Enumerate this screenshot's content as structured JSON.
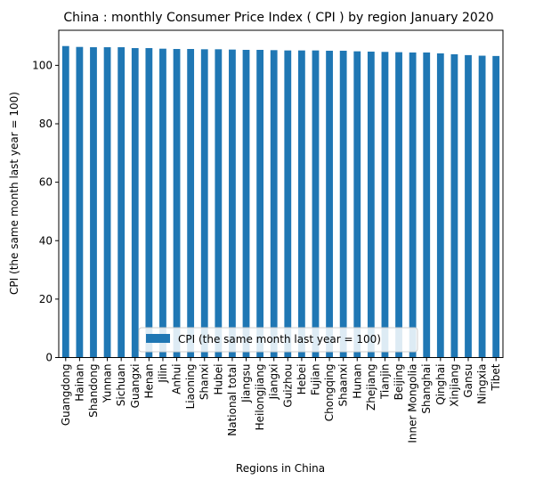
{
  "chart_data": {
    "type": "bar",
    "title": "China : monthly Consumer Price Index ( CPI ) by region January 2020",
    "xlabel": "Regions in China",
    "ylabel": "CPI (the same month last year = 100)",
    "ylim": [
      0,
      112
    ],
    "yticks": [
      0,
      20,
      40,
      60,
      80,
      100
    ],
    "grid": false,
    "legend_position": "lower center",
    "color": "#1f77b4",
    "categories": [
      "Guangdong",
      "Hainan",
      "Shandong",
      "Yunnan",
      "Sichuan",
      "Guangxi",
      "Henan",
      "Jilin",
      "Anhui",
      "Liaoning",
      "Shanxi",
      "Hubei",
      "National total",
      "Jiangsu",
      "Heilongjiang",
      "Jiangxi",
      "Guizhou",
      "Hebei",
      "Fujian",
      "Chongqing",
      "Shaanxi",
      "Hunan",
      "Zhejiang",
      "Tianjin",
      "Beijing",
      "Inner Mongolia",
      "Shanghai",
      "Qinghai",
      "Xinjiang",
      "Gansu",
      "Ningxia",
      "Tibet"
    ],
    "series": [
      {
        "name": "CPI (the same month last year = 100)",
        "values": [
          106.6,
          106.3,
          106.2,
          106.2,
          106.2,
          105.9,
          105.9,
          105.7,
          105.6,
          105.6,
          105.5,
          105.5,
          105.4,
          105.3,
          105.3,
          105.2,
          105.1,
          105.1,
          105.1,
          105.0,
          105.0,
          104.8,
          104.7,
          104.6,
          104.5,
          104.4,
          104.4,
          104.1,
          103.8,
          103.5,
          103.3,
          103.2
        ]
      }
    ]
  }
}
